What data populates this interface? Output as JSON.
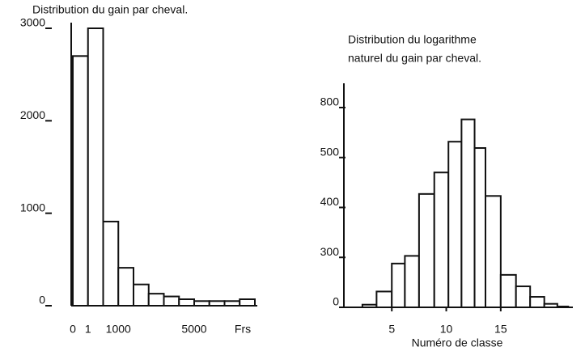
{
  "chart_data": [
    {
      "type": "bar",
      "title": "Distribution du gain par cheval.",
      "x_label": "Frs",
      "categories": [
        "0",
        "1",
        null,
        "1000",
        null,
        null,
        null,
        null,
        "5000",
        null,
        null,
        null
      ],
      "values": [
        2700,
        3000,
        910,
        410,
        230,
        130,
        100,
        70,
        50,
        50,
        50,
        70
      ],
      "ylim": [
        0,
        3000
      ],
      "yticks": [
        0,
        1000,
        2000,
        3000
      ],
      "color": "#111111"
    },
    {
      "type": "histogram",
      "title": [
        "Distribution du logarithme",
        "naturel du gain par cheval."
      ],
      "x_label": "Numéro de classe",
      "bins": [
        2.3,
        3.6,
        5,
        6.2,
        7.5,
        8.9,
        10.2,
        11.4,
        12.6,
        13.6,
        15,
        16.4,
        17.7,
        19,
        20.2,
        21.2
      ],
      "counts": [
        16,
        95,
        263,
        303,
        427,
        470,
        595,
        729,
        557,
        423,
        195,
        126,
        63,
        21,
        5
      ],
      "xlim": [
        0.6,
        21.4
      ],
      "xticks": [
        5,
        10,
        15
      ],
      "ylim": [
        0,
        800
      ],
      "yticks": [
        0,
        300,
        400,
        500,
        800
      ],
      "yscale": "piecewise",
      "color": "#111111"
    }
  ]
}
